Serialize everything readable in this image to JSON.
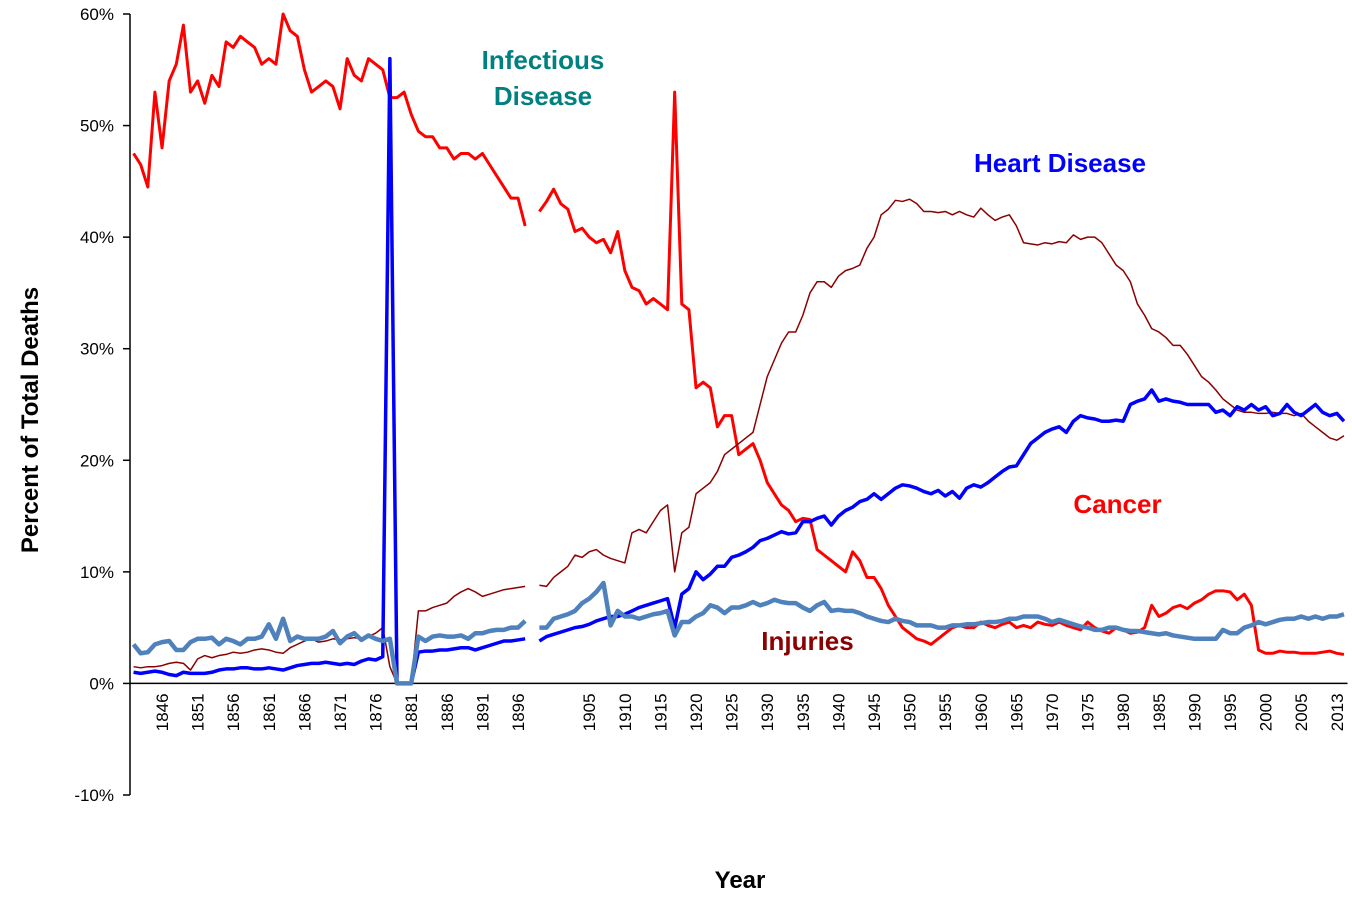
{
  "chart_data": {
    "type": "line",
    "xlabel": "Year",
    "ylabel": "Percent of Total Deaths",
    "ylim": [
      -10,
      60
    ],
    "yticks": [
      {
        "value": -10,
        "label": "-10%"
      },
      {
        "value": 0,
        "label": "0%"
      },
      {
        "value": 10,
        "label": "10%"
      },
      {
        "value": 20,
        "label": "20%"
      },
      {
        "value": 30,
        "label": "30%"
      },
      {
        "value": 40,
        "label": "40%"
      },
      {
        "value": 50,
        "label": "50%"
      },
      {
        "value": 60,
        "label": "60%"
      }
    ],
    "categories": [
      null,
      null,
      null,
      null,
      "1846",
      null,
      null,
      null,
      null,
      "1851",
      null,
      null,
      null,
      null,
      "1856",
      null,
      null,
      null,
      null,
      "1861",
      null,
      null,
      null,
      null,
      "1866",
      null,
      null,
      null,
      null,
      "1871",
      null,
      null,
      null,
      null,
      "1876",
      null,
      null,
      null,
      null,
      "1881",
      null,
      null,
      null,
      null,
      "1886",
      null,
      null,
      null,
      null,
      "1891",
      null,
      null,
      null,
      null,
      "1896",
      null,
      null,
      null,
      null,
      null,
      null,
      null,
      null,
      null,
      "1905",
      null,
      null,
      null,
      null,
      "1910",
      null,
      null,
      null,
      null,
      "1915",
      null,
      null,
      null,
      null,
      "1920",
      null,
      null,
      null,
      null,
      "1925",
      null,
      null,
      null,
      null,
      "1930",
      null,
      null,
      null,
      null,
      "1935",
      null,
      null,
      null,
      null,
      "1940",
      null,
      null,
      null,
      null,
      "1945",
      null,
      null,
      null,
      null,
      "1950",
      null,
      null,
      null,
      null,
      "1955",
      null,
      null,
      null,
      null,
      "1960",
      null,
      null,
      null,
      null,
      "1965",
      null,
      null,
      null,
      null,
      "1970",
      null,
      null,
      null,
      null,
      "1975",
      null,
      null,
      null,
      null,
      "1980",
      null,
      null,
      null,
      null,
      "1985",
      null,
      null,
      null,
      null,
      "1990",
      null,
      null,
      null,
      null,
      "1995",
      null,
      null,
      null,
      null,
      "2000",
      null,
      null,
      null,
      null,
      "2005",
      null,
      null,
      null,
      null,
      "2013",
      null
    ],
    "series": [
      {
        "name": "Infectious Disease",
        "color": "#ff0000",
        "label_color": "#008080",
        "values": [
          47.5,
          46.5,
          44.5,
          53,
          48,
          54,
          55.5,
          59,
          53,
          54,
          52,
          54.5,
          53.5,
          57.5,
          57,
          58,
          57.5,
          57,
          55.5,
          56,
          55.5,
          60,
          58.5,
          58,
          55,
          53,
          53.5,
          54,
          53.5,
          51.5,
          56,
          54.5,
          54,
          56,
          55.5,
          55,
          52.5,
          52.5,
          53,
          51,
          49.5,
          49,
          49,
          48,
          48,
          47,
          47.5,
          47.5,
          47,
          47.5,
          46.5,
          45.5,
          44.5,
          43.5,
          43.5,
          41,
          null,
          42.3,
          43.2,
          44.3,
          43,
          42.5,
          40.5,
          40.8,
          40,
          39.5,
          39.8,
          38.6,
          40.5,
          37,
          35.5,
          35.2,
          34,
          34.5,
          34,
          33.5,
          53,
          34,
          33.5,
          26.5,
          27,
          26.5,
          23,
          24,
          24,
          20.5,
          21,
          21.5,
          20,
          18,
          17,
          16,
          15.5,
          14.5,
          14.8,
          14.7,
          12,
          11.5,
          11,
          10.5,
          10,
          11.8,
          11,
          9.5,
          9.5,
          8.5,
          7,
          6,
          5,
          4.5,
          4,
          3.8,
          3.5,
          4,
          4.5,
          5,
          5.2,
          5,
          5,
          5.5,
          5.2,
          5,
          5.3,
          5.5,
          5,
          5.2,
          5,
          5.5,
          5.3,
          5.2,
          5.5,
          5.2,
          5,
          4.8,
          5.5,
          5,
          4.7,
          4.5,
          5,
          4.8,
          4.5,
          4.6,
          5,
          7,
          6,
          6.3,
          6.8,
          7,
          6.7,
          7.2,
          7.5,
          8,
          8.3,
          8.3,
          8.2,
          7.5,
          8,
          7,
          3,
          2.7,
          2.7,
          2.9,
          2.8,
          2.8,
          2.7,
          2.7,
          2.7,
          2.8,
          2.9,
          2.7,
          2.6
        ]
      },
      {
        "name": "Heart Disease",
        "color": "#8b0000",
        "label_color": "#0000ff",
        "values": [
          1.5,
          1.4,
          1.5,
          1.5,
          1.6,
          1.8,
          1.9,
          1.8,
          1.2,
          2.2,
          2.5,
          2.3,
          2.5,
          2.6,
          2.8,
          2.7,
          2.8,
          3,
          3.1,
          3,
          2.8,
          2.7,
          3.2,
          3.5,
          3.8,
          4,
          3.7,
          3.8,
          4,
          3.9,
          4,
          4.1,
          4,
          4.2,
          4.5,
          5,
          1.5,
          0,
          0,
          0,
          6.5,
          6.5,
          6.8,
          7,
          7.2,
          7.8,
          8.2,
          8.5,
          8.2,
          7.8,
          8,
          8.2,
          8.4,
          8.5,
          8.6,
          8.7,
          null,
          8.8,
          8.7,
          9.5,
          10,
          10.5,
          11.5,
          11.3,
          11.8,
          12,
          11.5,
          11.2,
          11,
          10.8,
          13.5,
          13.8,
          13.5,
          14.5,
          15.5,
          16,
          10,
          13.5,
          14,
          17,
          17.5,
          18,
          19,
          20.5,
          21,
          21.5,
          22,
          22.5,
          25,
          27.5,
          29,
          30.5,
          31.5,
          31.5,
          33,
          35,
          36,
          36,
          35.5,
          36.5,
          37,
          37.2,
          37.5,
          39,
          40,
          42,
          42.5,
          43.3,
          43.2,
          43.4,
          43,
          42.3,
          42.3,
          42.2,
          42.3,
          42,
          42.3,
          42,
          41.8,
          42.6,
          42,
          41.5,
          41.8,
          42,
          41,
          39.5,
          39.4,
          39.3,
          39.5,
          39.4,
          39.6,
          39.5,
          40.2,
          39.8,
          40,
          40,
          39.5,
          38.5,
          37.5,
          37,
          36,
          34,
          33,
          31.8,
          31.5,
          31,
          30.3,
          30.3,
          29.5,
          28.5,
          27.5,
          27,
          26.3,
          25.5,
          25,
          24.5,
          24.3,
          24.3,
          24.2,
          24.2,
          24.3,
          24.2,
          24.2,
          24,
          24.2,
          23.5,
          23,
          22.5,
          22,
          21.8,
          22.2
        ]
      },
      {
        "name": "Cancer",
        "color": "#0000ff",
        "label_color": "#ff0000",
        "values": [
          1,
          0.9,
          1,
          1.1,
          1,
          0.8,
          0.7,
          1,
          0.9,
          0.9,
          0.9,
          1,
          1.2,
          1.3,
          1.3,
          1.4,
          1.4,
          1.3,
          1.3,
          1.4,
          1.3,
          1.2,
          1.4,
          1.6,
          1.7,
          1.8,
          1.8,
          1.9,
          1.8,
          1.7,
          1.8,
          1.7,
          2,
          2.2,
          2.1,
          2.4,
          56,
          0,
          0,
          0,
          2.8,
          2.9,
          2.9,
          3,
          3,
          3.1,
          3.2,
          3.2,
          3,
          3.2,
          3.4,
          3.6,
          3.8,
          3.8,
          3.9,
          4,
          null,
          3.8,
          4.2,
          4.4,
          4.6,
          4.8,
          5,
          5.1,
          5.3,
          5.6,
          5.8,
          6,
          6,
          6.2,
          6.5,
          6.8,
          7,
          7.2,
          7.4,
          7.6,
          5,
          8,
          8.5,
          10,
          9.3,
          9.8,
          10.5,
          10.5,
          11.3,
          11.5,
          11.8,
          12.2,
          12.8,
          13,
          13.3,
          13.6,
          13.4,
          13.5,
          14.5,
          14.5,
          14.8,
          15,
          14.2,
          15,
          15.5,
          15.8,
          16.3,
          16.5,
          17,
          16.5,
          17,
          17.5,
          17.8,
          17.7,
          17.5,
          17.2,
          17,
          17.3,
          16.8,
          17.2,
          16.6,
          17.5,
          17.8,
          17.6,
          18,
          18.5,
          19,
          19.4,
          19.5,
          20.5,
          21.5,
          22,
          22.5,
          22.8,
          23,
          22.5,
          23.5,
          24,
          23.8,
          23.7,
          23.5,
          23.5,
          23.6,
          23.5,
          25,
          25.3,
          25.5,
          26.3,
          25.3,
          25.5,
          25.3,
          25.2,
          25,
          25,
          25,
          25,
          24.3,
          24.5,
          24,
          24.8,
          24.5,
          25,
          24.5,
          24.8,
          24,
          24.2,
          25,
          24.3,
          24,
          24.5,
          25,
          24.3,
          24,
          24.2,
          23.5
        ]
      },
      {
        "name": "Injuries",
        "color": "#4f81bd",
        "label_color": "#8b0000",
        "values": [
          3.5,
          2.7,
          2.8,
          3.5,
          3.7,
          3.8,
          3,
          3,
          3.7,
          4,
          4,
          4.1,
          3.5,
          4,
          3.8,
          3.5,
          4,
          4,
          4.2,
          5.3,
          4,
          5.8,
          3.8,
          4.2,
          4,
          4,
          4,
          4.2,
          4.7,
          3.6,
          4.2,
          4.5,
          3.9,
          4.3,
          4,
          3.8,
          4,
          0,
          0,
          0,
          4.2,
          3.8,
          4.2,
          4.3,
          4.2,
          4.2,
          4.3,
          4,
          4.5,
          4.5,
          4.7,
          4.8,
          4.8,
          5,
          5,
          5.6,
          null,
          5,
          5,
          5.8,
          6,
          6.2,
          6.5,
          7.2,
          7.6,
          8.2,
          9,
          5.2,
          6.5,
          6,
          6,
          5.8,
          6,
          6.2,
          6.3,
          6.5,
          4.3,
          5.5,
          5.5,
          6,
          6.3,
          7,
          6.8,
          6.3,
          6.8,
          6.8,
          7,
          7.3,
          7,
          7.2,
          7.5,
          7.3,
          7.2,
          7.2,
          6.8,
          6.5,
          7,
          7.3,
          6.5,
          6.6,
          6.5,
          6.5,
          6.3,
          6,
          5.8,
          5.6,
          5.5,
          5.8,
          5.6,
          5.5,
          5.2,
          5.2,
          5.2,
          5,
          5,
          5.2,
          5.2,
          5.3,
          5.3,
          5.4,
          5.5,
          5.5,
          5.6,
          5.8,
          5.8,
          6,
          6,
          6,
          5.8,
          5.5,
          5.7,
          5.5,
          5.3,
          5.1,
          5,
          4.8,
          4.8,
          5,
          5,
          4.8,
          4.7,
          4.7,
          4.6,
          4.5,
          4.4,
          4.5,
          4.3,
          4.2,
          4.1,
          4,
          4,
          4,
          4,
          4.8,
          4.5,
          4.5,
          5,
          5.2,
          5.5,
          5.3,
          5.5,
          5.7,
          5.8,
          5.8,
          6,
          5.8,
          6,
          5.8,
          6,
          6,
          6.2
        ]
      }
    ]
  }
}
